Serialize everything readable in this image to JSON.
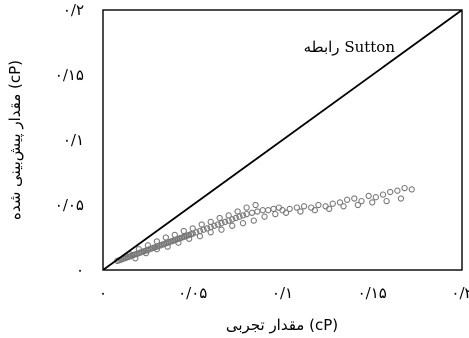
{
  "chart_data": {
    "type": "scatter",
    "title": "",
    "xlabel": "مقدار تجربی (cP)",
    "ylabel": "مقدار پیش‌بینی شده (cP)",
    "xlim": [
      0,
      0.2
    ],
    "ylim": [
      0,
      0.2
    ],
    "xticks": [
      0,
      0.05,
      0.1,
      0.15,
      0.2
    ],
    "yticks": [
      0,
      0.05,
      0.1,
      0.15,
      0.2
    ],
    "xtick_labels": [
      "۰",
      "۰/۰۵",
      "۰/۱",
      "۰/۱۵",
      "۰/۲"
    ],
    "ytick_labels": [
      "۰",
      "۰/۰۵",
      "۰/۱",
      "۰/۱۵",
      "۰/۲"
    ],
    "grid": false,
    "reference_line": {
      "x": [
        0,
        0.2
      ],
      "y": [
        0,
        0.2
      ]
    },
    "annotation": "رابطه Sutton",
    "marker_color": "#777777",
    "series": [
      {
        "marker": "open-circle",
        "points": [
          [
            0.008,
            0.007
          ],
          [
            0.009,
            0.0075
          ],
          [
            0.01,
            0.008
          ],
          [
            0.011,
            0.0085
          ],
          [
            0.012,
            0.009
          ],
          [
            0.013,
            0.0095
          ],
          [
            0.014,
            0.01
          ],
          [
            0.015,
            0.0105
          ],
          [
            0.016,
            0.011
          ],
          [
            0.017,
            0.0115
          ],
          [
            0.018,
            0.012
          ],
          [
            0.019,
            0.0125
          ],
          [
            0.02,
            0.013
          ],
          [
            0.021,
            0.0135
          ],
          [
            0.022,
            0.014
          ],
          [
            0.023,
            0.0145
          ],
          [
            0.024,
            0.015
          ],
          [
            0.025,
            0.0155
          ],
          [
            0.026,
            0.016
          ],
          [
            0.027,
            0.0165
          ],
          [
            0.028,
            0.017
          ],
          [
            0.029,
            0.0175
          ],
          [
            0.03,
            0.018
          ],
          [
            0.031,
            0.0185
          ],
          [
            0.032,
            0.019
          ],
          [
            0.033,
            0.0195
          ],
          [
            0.034,
            0.02
          ],
          [
            0.035,
            0.0205
          ],
          [
            0.036,
            0.021
          ],
          [
            0.037,
            0.0215
          ],
          [
            0.038,
            0.022
          ],
          [
            0.039,
            0.0225
          ],
          [
            0.04,
            0.023
          ],
          [
            0.041,
            0.0235
          ],
          [
            0.042,
            0.024
          ],
          [
            0.043,
            0.0245
          ],
          [
            0.044,
            0.025
          ],
          [
            0.045,
            0.0255
          ],
          [
            0.046,
            0.026
          ],
          [
            0.047,
            0.0265
          ],
          [
            0.048,
            0.027
          ],
          [
            0.049,
            0.0275
          ],
          [
            0.05,
            0.028
          ],
          [
            0.052,
            0.029
          ],
          [
            0.054,
            0.03
          ],
          [
            0.056,
            0.031
          ],
          [
            0.058,
            0.032
          ],
          [
            0.06,
            0.033
          ],
          [
            0.062,
            0.034
          ],
          [
            0.064,
            0.035
          ],
          [
            0.066,
            0.036
          ],
          [
            0.068,
            0.037
          ],
          [
            0.07,
            0.038
          ],
          [
            0.072,
            0.039
          ],
          [
            0.074,
            0.04
          ],
          [
            0.076,
            0.041
          ],
          [
            0.078,
            0.042
          ],
          [
            0.08,
            0.043
          ],
          [
            0.083,
            0.044
          ],
          [
            0.086,
            0.045
          ],
          [
            0.089,
            0.046
          ],
          [
            0.092,
            0.046
          ],
          [
            0.095,
            0.047
          ],
          [
            0.098,
            0.048
          ],
          [
            0.1,
            0.046
          ],
          [
            0.104,
            0.047
          ],
          [
            0.108,
            0.048
          ],
          [
            0.112,
            0.049
          ],
          [
            0.116,
            0.048
          ],
          [
            0.12,
            0.05
          ],
          [
            0.124,
            0.049
          ],
          [
            0.128,
            0.051
          ],
          [
            0.132,
            0.052
          ],
          [
            0.136,
            0.054
          ],
          [
            0.14,
            0.055
          ],
          [
            0.144,
            0.053
          ],
          [
            0.148,
            0.057
          ],
          [
            0.152,
            0.056
          ],
          [
            0.156,
            0.058
          ],
          [
            0.16,
            0.06
          ],
          [
            0.164,
            0.061
          ],
          [
            0.168,
            0.063
          ],
          [
            0.172,
            0.062
          ],
          [
            0.015,
            0.012
          ],
          [
            0.02,
            0.016
          ],
          [
            0.025,
            0.019
          ],
          [
            0.03,
            0.022
          ],
          [
            0.035,
            0.025
          ],
          [
            0.04,
            0.027
          ],
          [
            0.045,
            0.03
          ],
          [
            0.05,
            0.032
          ],
          [
            0.055,
            0.035
          ],
          [
            0.06,
            0.037
          ],
          [
            0.065,
            0.04
          ],
          [
            0.07,
            0.042
          ],
          [
            0.075,
            0.045
          ],
          [
            0.08,
            0.048
          ],
          [
            0.085,
            0.05
          ],
          [
            0.018,
            0.009
          ],
          [
            0.024,
            0.013
          ],
          [
            0.03,
            0.016
          ],
          [
            0.036,
            0.018
          ],
          [
            0.042,
            0.021
          ],
          [
            0.048,
            0.024
          ],
          [
            0.054,
            0.026
          ],
          [
            0.06,
            0.029
          ],
          [
            0.066,
            0.031
          ],
          [
            0.072,
            0.034
          ],
          [
            0.078,
            0.036
          ],
          [
            0.084,
            0.038
          ],
          [
            0.09,
            0.041
          ],
          [
            0.096,
            0.043
          ],
          [
            0.102,
            0.044
          ],
          [
            0.11,
            0.045
          ],
          [
            0.118,
            0.046
          ],
          [
            0.126,
            0.047
          ],
          [
            0.134,
            0.049
          ],
          [
            0.142,
            0.05
          ],
          [
            0.15,
            0.052
          ],
          [
            0.158,
            0.053
          ],
          [
            0.166,
            0.055
          ]
        ]
      }
    ]
  }
}
